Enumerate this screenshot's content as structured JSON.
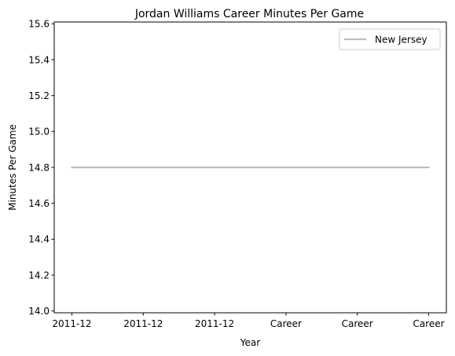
{
  "chart_data": {
    "type": "line",
    "title": "Jordan Williams  Career Minutes Per Game",
    "xlabel": "Year",
    "ylabel": "Minutes Per Game",
    "categories": [
      "2011-12",
      "2011-12",
      "2011-12",
      "Career",
      "Career",
      "Career"
    ],
    "series": [
      {
        "name": "New Jersey",
        "color": "#bfbfbf",
        "values": [
          14.8,
          14.8,
          14.8,
          14.8,
          14.8,
          14.8
        ]
      }
    ],
    "yticks": [
      14.0,
      14.2,
      14.4,
      14.6,
      14.8,
      15.0,
      15.2,
      15.4,
      15.6
    ],
    "ylim": [
      13.99,
      15.61
    ],
    "grid": false,
    "legend": "top-right"
  }
}
